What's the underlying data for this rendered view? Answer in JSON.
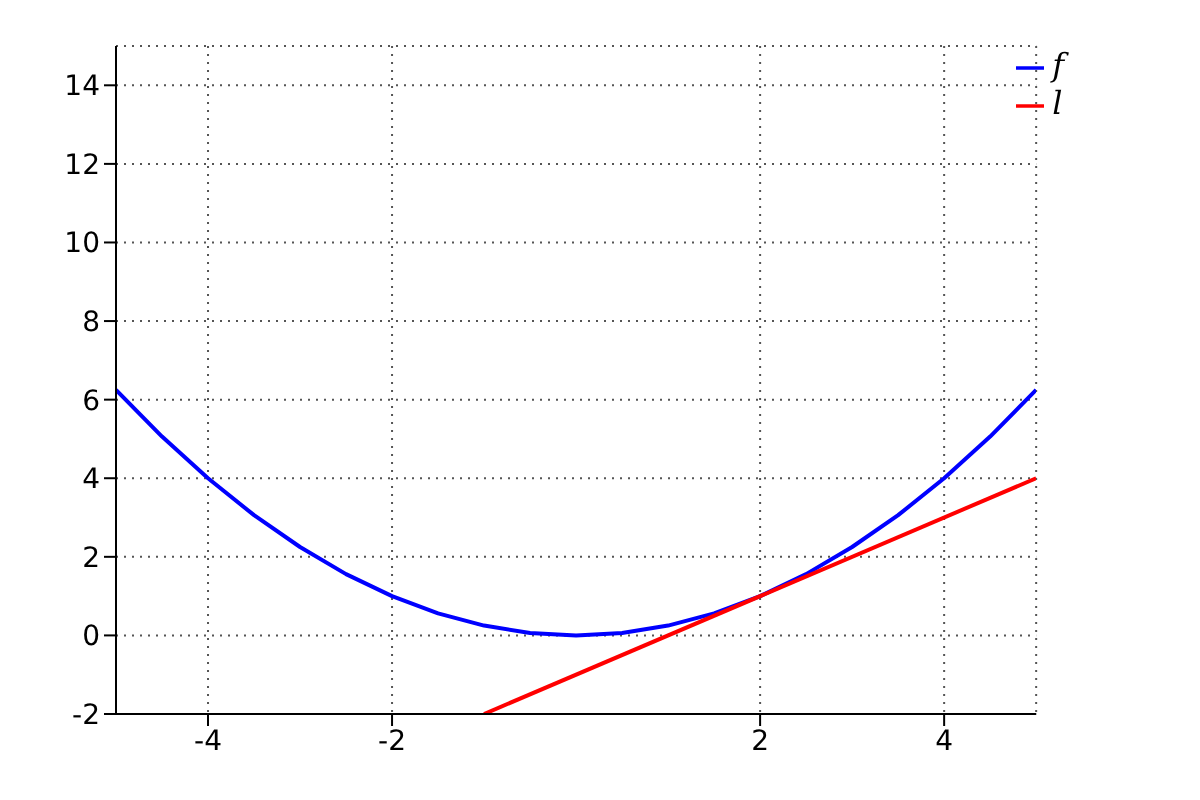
{
  "chart_data": {
    "type": "line",
    "xlim": [
      -5,
      5
    ],
    "ylim": [
      -2,
      15
    ],
    "xticks": [
      -4,
      -2,
      2,
      4
    ],
    "yticks": [
      -2,
      0,
      2,
      4,
      6,
      8,
      10,
      12,
      14
    ],
    "grid": true,
    "legend": "top right",
    "marker": "none",
    "line_style": "solid",
    "series": [
      {
        "name": "f",
        "color": "#0000ff",
        "x": [
          -5,
          -4.5,
          -4,
          -3.5,
          -3,
          -2.5,
          -2,
          -1.5,
          -1,
          -0.5,
          0,
          0.5,
          1,
          1.5,
          2,
          2.5,
          3,
          3.5,
          4,
          4.5,
          5
        ],
        "values": [
          6.25,
          5.06,
          4,
          3.06,
          2.25,
          1.56,
          1,
          0.56,
          0.25,
          0.06,
          0,
          0.06,
          0.25,
          0.56,
          1,
          1.56,
          2.25,
          3.06,
          4,
          5.06,
          6.25
        ]
      },
      {
        "name": "l",
        "color": "#ff0000",
        "x": [
          -1,
          5
        ],
        "values": [
          -2,
          4
        ]
      }
    ]
  }
}
